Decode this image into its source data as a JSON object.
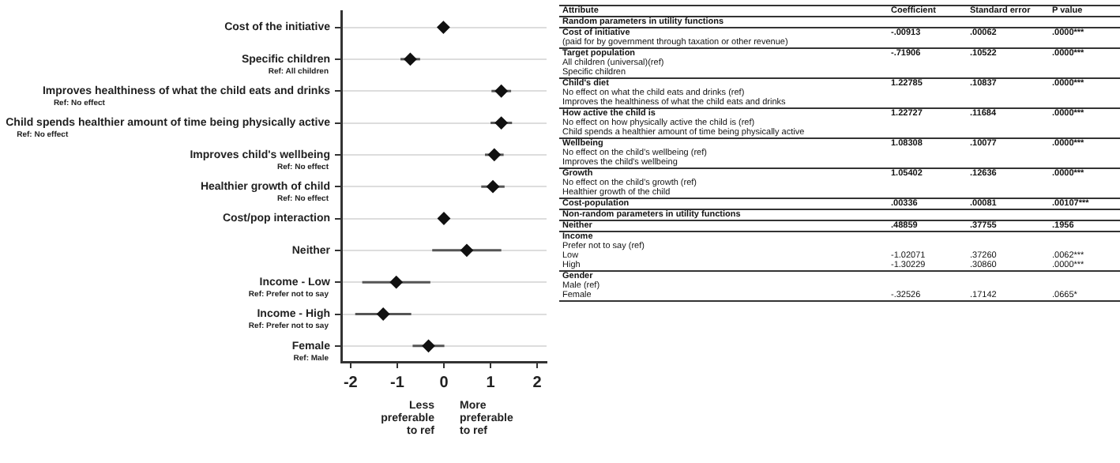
{
  "chart_data": [
    {
      "type": "scatter",
      "orientation": "horizontal",
      "categories": [
        "Cost of the initiative",
        "Specific children",
        "Improves healthiness of what the child eats and drinks",
        "Child spends healthier amount of time being physically active",
        "Improves child's wellbeing",
        "Healthier growth of child",
        "Cost/pop interaction",
        "Neither",
        "Income - Low",
        "Income - High",
        "Female"
      ],
      "values": [
        -0.01,
        -0.72,
        1.23,
        1.23,
        1.08,
        1.05,
        0.0,
        0.49,
        -1.02,
        -1.3,
        -0.33
      ],
      "errors": [
        null,
        0.21,
        0.21,
        0.23,
        0.2,
        0.25,
        null,
        0.74,
        0.73,
        0.6,
        0.34
      ],
      "color": "#111111",
      "marker": "diamond",
      "grid": "y",
      "xlim": [
        -2.2,
        2.2
      ],
      "xticks": [
        -2,
        -1,
        0,
        1,
        2
      ],
      "annotations": [
        "Ref: All children",
        "Ref: No effect",
        "Ref: No effect",
        "Ref: No effect",
        "Ref: No effect",
        "Ref: Prefer not to say",
        "Ref: Prefer not to say",
        "Ref: Male",
        "Less preferable to ref",
        "More preferable to ref"
      ]
    },
    {
      "type": "other",
      "categories": [
        "Attribute",
        "Coefficient",
        "Standard error",
        "P value"
      ],
      "cell_labels": [
        [
          "Random parameters in utility functions",
          null,
          null,
          null
        ],
        [
          "Cost of initiative",
          "-.00913",
          ".00062",
          ".0000***"
        ],
        [
          "(paid for by government through taxation or other revenue)",
          null,
          null,
          null
        ],
        [
          "Target population",
          "-.71906",
          ".10522",
          ".0000***"
        ],
        [
          "All children (universal)(ref)",
          null,
          null,
          null
        ],
        [
          "Specific children",
          null,
          null,
          null
        ],
        [
          "Child's diet",
          "1.22785",
          ".10837",
          ".0000***"
        ],
        [
          "No effect on what the child eats and drinks (ref)",
          null,
          null,
          null
        ],
        [
          "Improves the healthiness of what the child eats and drinks",
          null,
          null,
          null
        ],
        [
          "How active the child is",
          "1.22727",
          ".11684",
          ".0000***"
        ],
        [
          "No effect on how physically active the child is (ref)",
          null,
          null,
          null
        ],
        [
          "Child spends a healthier amount of time being physically active",
          null,
          null,
          null
        ],
        [
          "Wellbeing",
          "1.08308",
          ".10077",
          ".0000***"
        ],
        [
          "No effect on the child's wellbeing (ref)",
          null,
          null,
          null
        ],
        [
          "Improves the child's wellbeing",
          null,
          null,
          null
        ],
        [
          "Growth",
          "1.05402",
          ".12636",
          ".0000***"
        ],
        [
          "No effect on the child's growth (ref)",
          null,
          null,
          null
        ],
        [
          "Healthier growth of the child",
          null,
          null,
          null
        ],
        [
          "Cost-population",
          ".00336",
          ".00081",
          ".00107***"
        ],
        [
          "Non-random parameters in utility functions",
          null,
          null,
          null
        ],
        [
          "Neither",
          ".48859",
          ".37755",
          ".1956"
        ],
        [
          "Income",
          null,
          null,
          null
        ],
        [
          "Prefer not to say (ref)",
          null,
          null,
          null
        ],
        [
          "Low",
          "-1.02071",
          ".37260",
          ".0062***"
        ],
        [
          "High",
          "-1.30229",
          ".30860",
          ".0000***"
        ],
        [
          "Gender",
          null,
          null,
          null
        ],
        [
          "Male (ref)",
          null,
          null,
          null
        ],
        [
          "Female",
          "-.32526",
          ".17142",
          ".0665*"
        ]
      ]
    }
  ]
}
